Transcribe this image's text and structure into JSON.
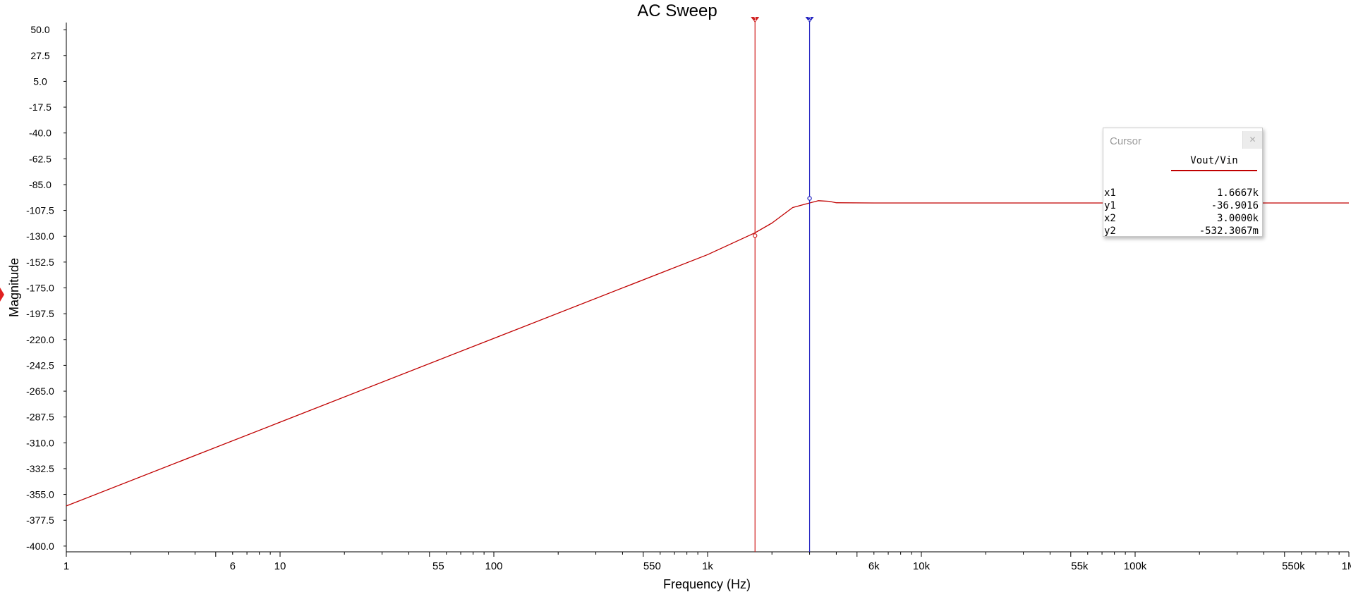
{
  "chart_data": {
    "type": "line",
    "title": "AC Sweep",
    "xlabel": "Frequency (Hz)",
    "ylabel": "Magnitude",
    "x_scale": "log",
    "xlim": [
      1,
      1000000
    ],
    "ylim": [
      -405,
      55
    ],
    "x_tick_labels": [
      {
        "value": 1,
        "label": "1"
      },
      {
        "value": 6,
        "label": "6"
      },
      {
        "value": 10,
        "label": "10"
      },
      {
        "value": 55,
        "label": "55"
      },
      {
        "value": 100,
        "label": "100"
      },
      {
        "value": 550,
        "label": "550"
      },
      {
        "value": 1000,
        "label": "1k"
      },
      {
        "value": 6000,
        "label": "6k"
      },
      {
        "value": 10000,
        "label": "10k"
      },
      {
        "value": 55000,
        "label": "55k"
      },
      {
        "value": 100000,
        "label": "100k"
      },
      {
        "value": 550000,
        "label": "550k"
      },
      {
        "value": 1000000,
        "label": "1M"
      }
    ],
    "y_tick_labels": [
      "50.0",
      "27.5",
      "5.0",
      "-17.5",
      "-40.0",
      "-62.5",
      "-85.0",
      "-107.5",
      "-130.0",
      "-152.5",
      "-175.0",
      "-197.5",
      "-220.0",
      "-242.5",
      "-265.0",
      "-287.5",
      "-310.0",
      "-332.5",
      "-355.0",
      "-377.5",
      "-400.0"
    ],
    "y_tick_values": [
      50,
      27.5,
      5,
      -17.5,
      -40,
      -62.5,
      -85,
      -107.5,
      -130,
      -152.5,
      -175,
      -197.5,
      -220,
      -242.5,
      -265,
      -287.5,
      -310,
      -332.5,
      -355,
      -377.5,
      -400
    ],
    "series": [
      {
        "name": "Vout/Vin",
        "color": "#c00000",
        "points": [
          [
            1,
            -365
          ],
          [
            10,
            -292
          ],
          [
            100,
            -219
          ],
          [
            1000,
            -146
          ],
          [
            1667,
            -127
          ],
          [
            2000,
            -118.5
          ],
          [
            2500,
            -105
          ],
          [
            3000,
            -101
          ],
          [
            3300,
            -99
          ],
          [
            3700,
            -99.5
          ],
          [
            4000,
            -100.8
          ],
          [
            6000,
            -101
          ],
          [
            1000000,
            -101
          ]
        ]
      }
    ],
    "cursors": [
      {
        "name": "1",
        "x": 1666.7,
        "color": "#d02020",
        "marker_y": -129.5
      },
      {
        "name": "2",
        "x": 3000,
        "color": "#2020c0",
        "marker_y": -97
      }
    ],
    "axis_color": "#000000",
    "grid": false
  },
  "cursor_panel": {
    "title": "Cursor",
    "close_icon": "close-icon",
    "series_label": "Vout/Vin",
    "rows": [
      {
        "key": "x1",
        "value": "1.6667k"
      },
      {
        "key": "y1",
        "value": "-36.9016"
      },
      {
        "key": "x2",
        "value": "3.0000k"
      },
      {
        "key": "y2",
        "value": "-532.3067m"
      }
    ]
  }
}
